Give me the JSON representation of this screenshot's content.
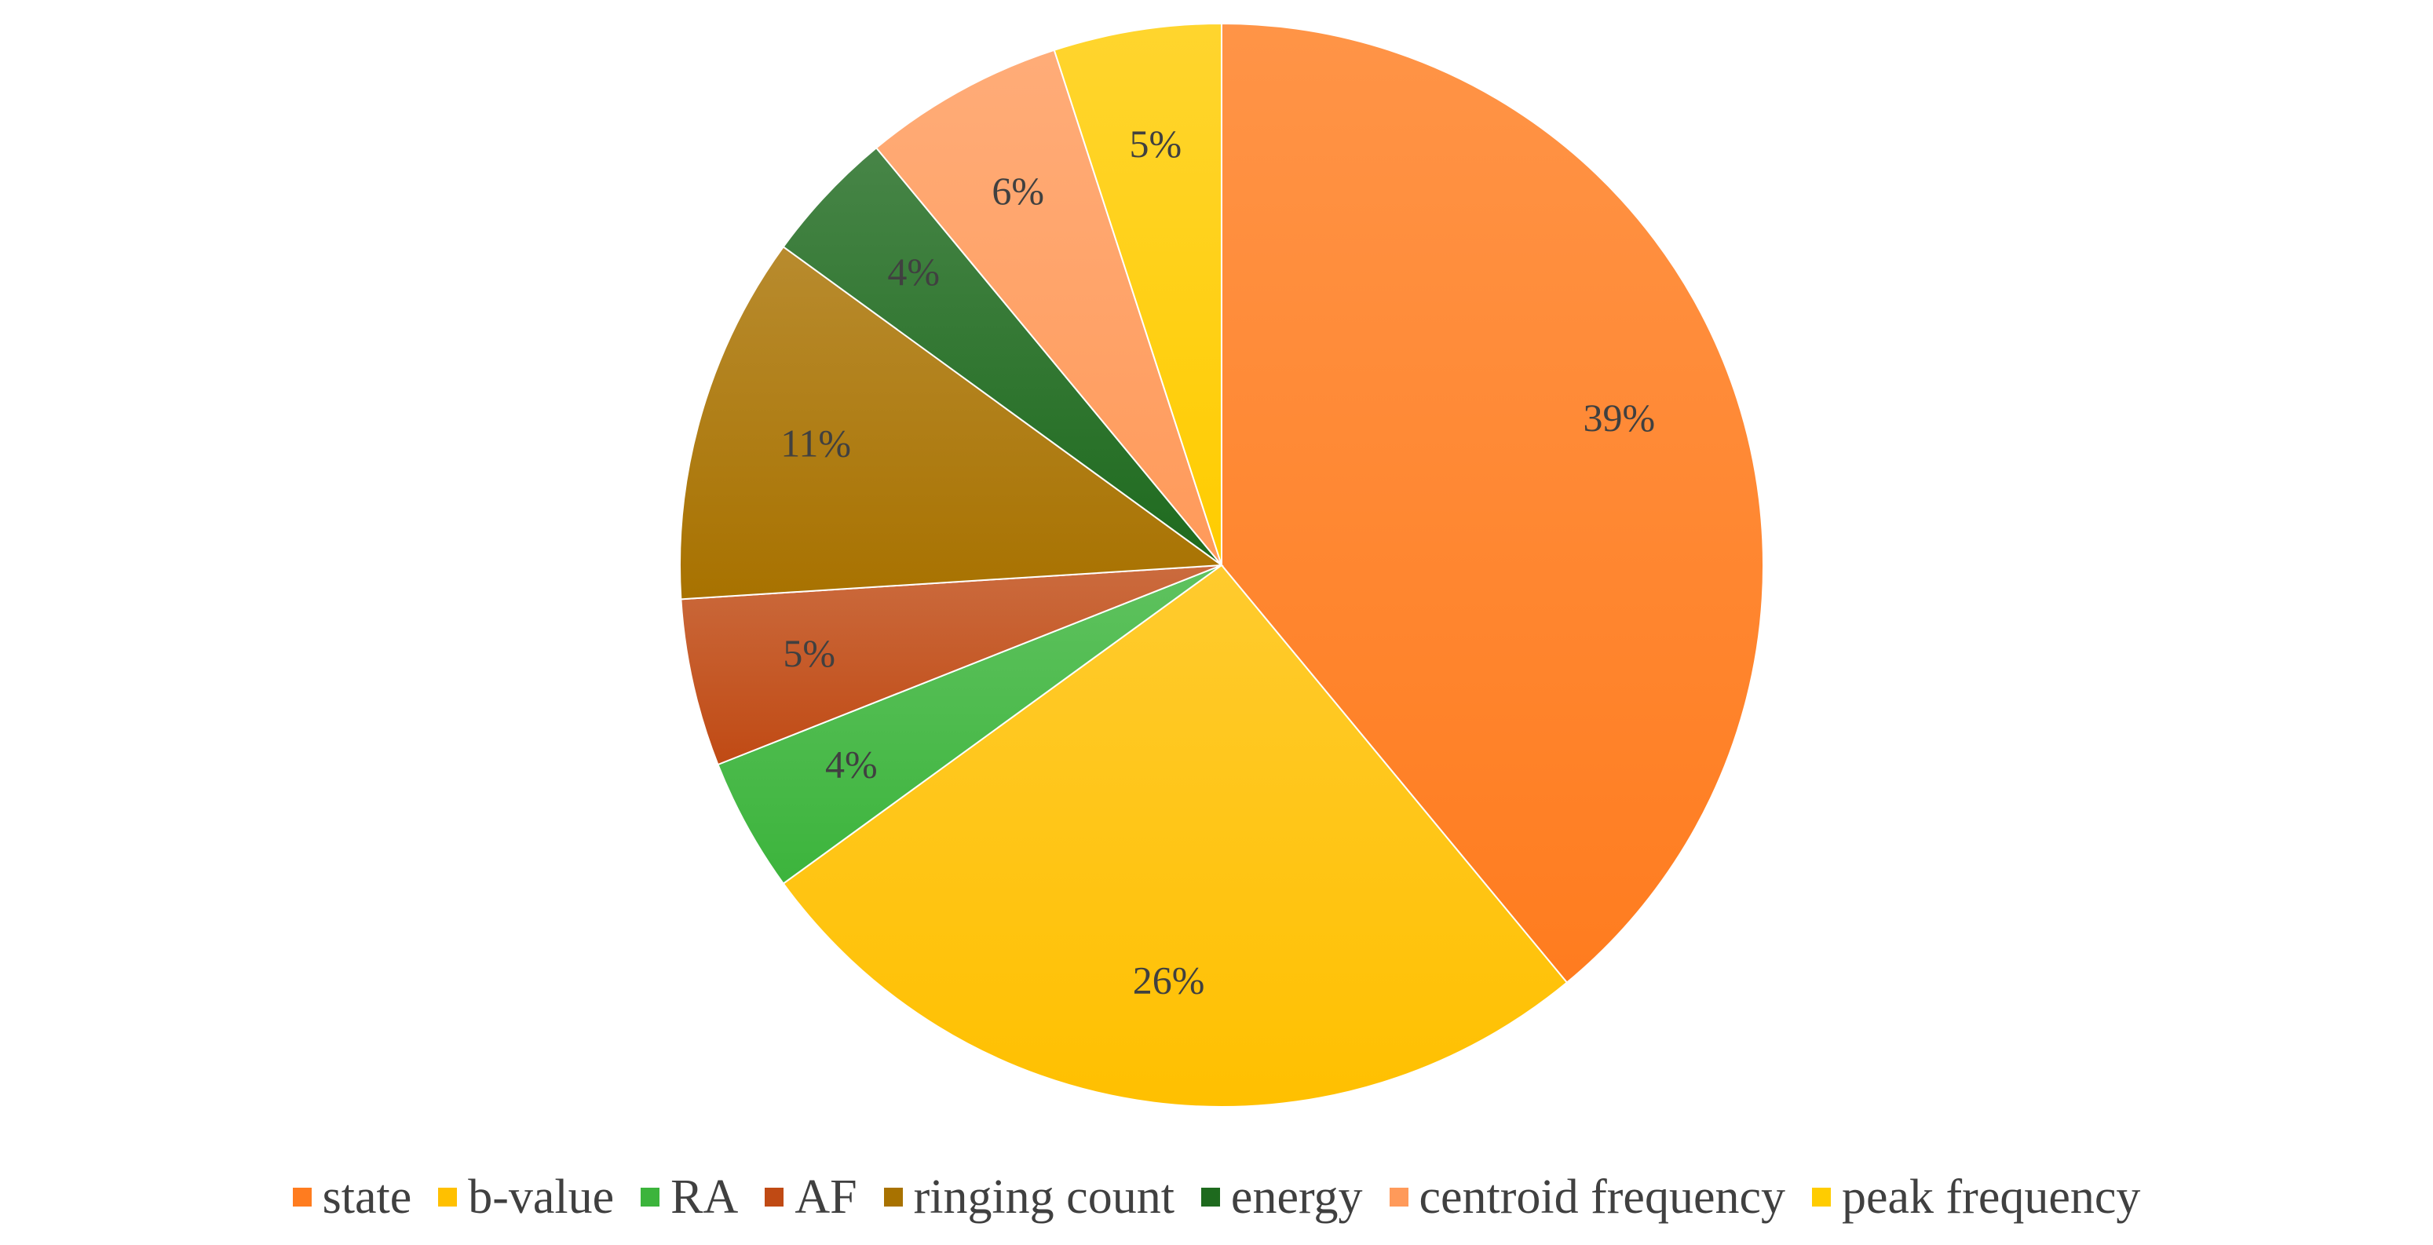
{
  "chart_data": {
    "type": "pie",
    "title": "",
    "unit": "%",
    "slices": [
      {
        "name": "state",
        "value": 39,
        "label": "39%",
        "color": "#FF7C1F"
      },
      {
        "name": "b-value",
        "value": 26,
        "label": "26%",
        "color": "#FFC000"
      },
      {
        "name": "RA",
        "value": 4,
        "label": "4%",
        "color": "#3CB43C"
      },
      {
        "name": "AF",
        "value": 5,
        "label": "5%",
        "color": "#C04A14"
      },
      {
        "name": "ringing count",
        "value": 11,
        "label": "11%",
        "color": "#A87200"
      },
      {
        "name": "energy",
        "value": 4,
        "label": "4%",
        "color": "#1E6A1E"
      },
      {
        "name": "centroid frequency",
        "value": 6,
        "label": "6%",
        "color": "#FF9A5A"
      },
      {
        "name": "peak frequency",
        "value": 5,
        "label": "5%",
        "color": "#FFCC00"
      }
    ],
    "start_angle": "12 o'clock",
    "direction": "clockwise",
    "legend_position": "bottom"
  }
}
